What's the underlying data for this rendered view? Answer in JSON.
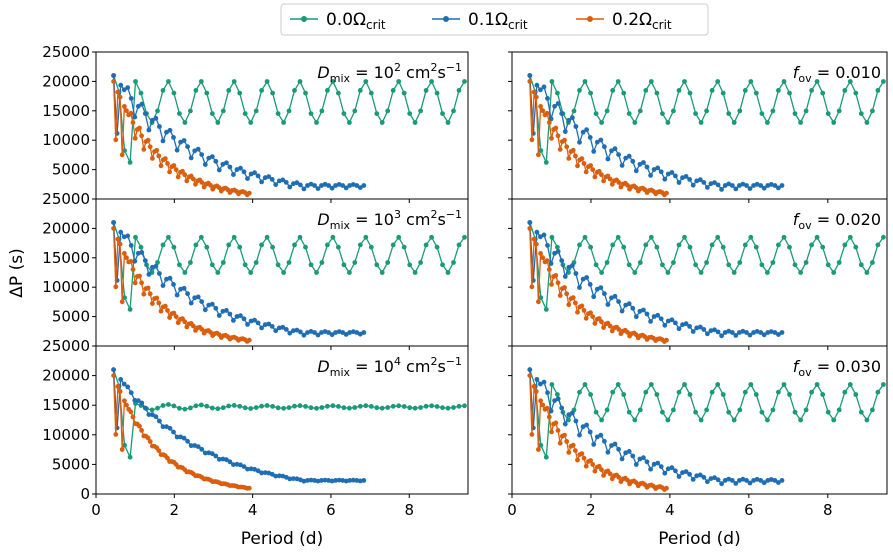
{
  "legend": {
    "location": "top-center",
    "entries": [
      {
        "name": "0.0",
        "symbol": "Ω",
        "sub": "crit",
        "color": "#1a9a77"
      },
      {
        "name": "0.1",
        "symbol": "Ω",
        "sub": "crit",
        "color": "#1f6eb4"
      },
      {
        "name": "0.2",
        "symbol": "Ω",
        "sub": "crit",
        "color": "#d95f0e"
      }
    ]
  },
  "axes": {
    "xlabel": "Period (d)",
    "ylabel": "ΔP (s)",
    "xlim": [
      0,
      9.5
    ],
    "ylim": [
      0,
      25000
    ],
    "xticks": [
      0,
      2,
      4,
      6,
      8
    ],
    "xtick_labels": [
      "0",
      "2",
      "4",
      "6",
      "8"
    ],
    "yticks": [
      0,
      5000,
      10000,
      15000,
      20000,
      25000
    ],
    "ytick_labels": [
      "0",
      "5000",
      "10000",
      "15000",
      "20000",
      "25000"
    ]
  },
  "chart_data": [
    {
      "type": "line",
      "panel": "top-left",
      "annotation": {
        "prefix": "D",
        "sub": "mix",
        "mid": " = 10",
        "sup": "2",
        "unit": " cm",
        "unit_sup": "2",
        "unit2": "s",
        "unit2_sup": "−1"
      },
      "params": {
        "mode": "A",
        "amp0": 2500,
        "amp1": 2500,
        "amp2": 2500,
        "tail0": 15500,
        "osc0": 7000
      }
    },
    {
      "type": "line",
      "panel": "top-right",
      "annotation": {
        "prefix": "f",
        "sub": "ov",
        "mid": " = 0.010"
      },
      "params": {
        "mode": "A",
        "amp0": 2500,
        "amp1": 2800,
        "amp2": 2500,
        "tail0": 15500,
        "osc0": 7000
      }
    },
    {
      "type": "line",
      "panel": "mid-left",
      "annotation": {
        "prefix": "D",
        "sub": "mix",
        "mid": " = 10",
        "sup": "3",
        "unit": " cm",
        "unit_sup": "2",
        "unit2": "s",
        "unit2_sup": "−1"
      },
      "params": {
        "mode": "A",
        "amp0": 2200,
        "amp1": 2000,
        "amp2": 2000,
        "tail0": 14500,
        "osc0": 6000
      }
    },
    {
      "type": "line",
      "panel": "mid-right",
      "annotation": {
        "prefix": "f",
        "sub": "ov",
        "mid": " = 0.020"
      },
      "params": {
        "mode": "A",
        "amp0": 2500,
        "amp1": 2400,
        "amp2": 2300,
        "tail0": 14500,
        "osc0": 6000
      }
    },
    {
      "type": "line",
      "panel": "bot-left",
      "annotation": {
        "prefix": "D",
        "sub": "mix",
        "mid": " = 10",
        "sup": "4",
        "unit": " cm",
        "unit_sup": "2",
        "unit2": "s",
        "unit2_sup": "−1"
      },
      "params": {
        "mode": "B",
        "amp0": 400,
        "amp1": 600,
        "amp2": 600,
        "tail0": 14700,
        "osc0": 4000
      }
    },
    {
      "type": "line",
      "panel": "bot-right",
      "annotation": {
        "prefix": "f",
        "sub": "ov",
        "mid": " = 0.030"
      },
      "params": {
        "mode": "A",
        "amp0": 2500,
        "amp1": 2400,
        "amp2": 2300,
        "tail0": 14500,
        "osc0": 6000
      }
    }
  ]
}
